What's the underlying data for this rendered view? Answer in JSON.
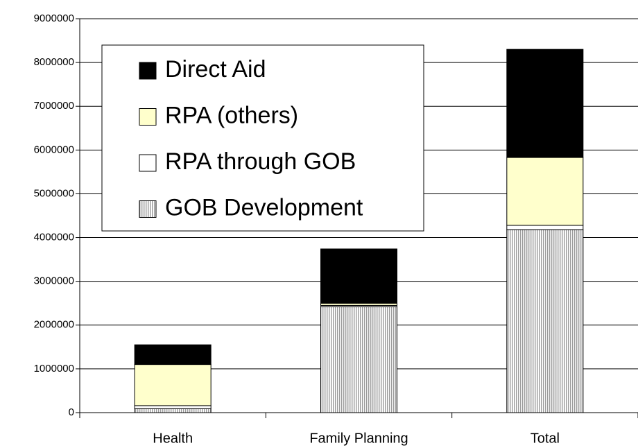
{
  "chart_data": {
    "type": "stacked_bar",
    "categories": [
      "Health",
      "Family Planning",
      "Total"
    ],
    "series": [
      {
        "name": "GOB Development",
        "color": "#cfcfcf",
        "values": [
          90000,
          2420000,
          4180000
        ]
      },
      {
        "name": "RPA through GOB",
        "color": "#ffffff",
        "values": [
          70000,
          30000,
          100000
        ]
      },
      {
        "name": "RPA (others)",
        "color": "#ffffcc",
        "values": [
          940000,
          50000,
          1550000
        ]
      },
      {
        "name": "Direct Aid",
        "color": "#000000",
        "values": [
          450000,
          1240000,
          2470000
        ]
      }
    ],
    "ylim": [
      0,
      9000000
    ],
    "yticks": [
      0,
      1000000,
      2000000,
      3000000,
      4000000,
      5000000,
      6000000,
      7000000,
      8000000,
      9000000
    ],
    "grid": true,
    "legend": "upper left"
  }
}
